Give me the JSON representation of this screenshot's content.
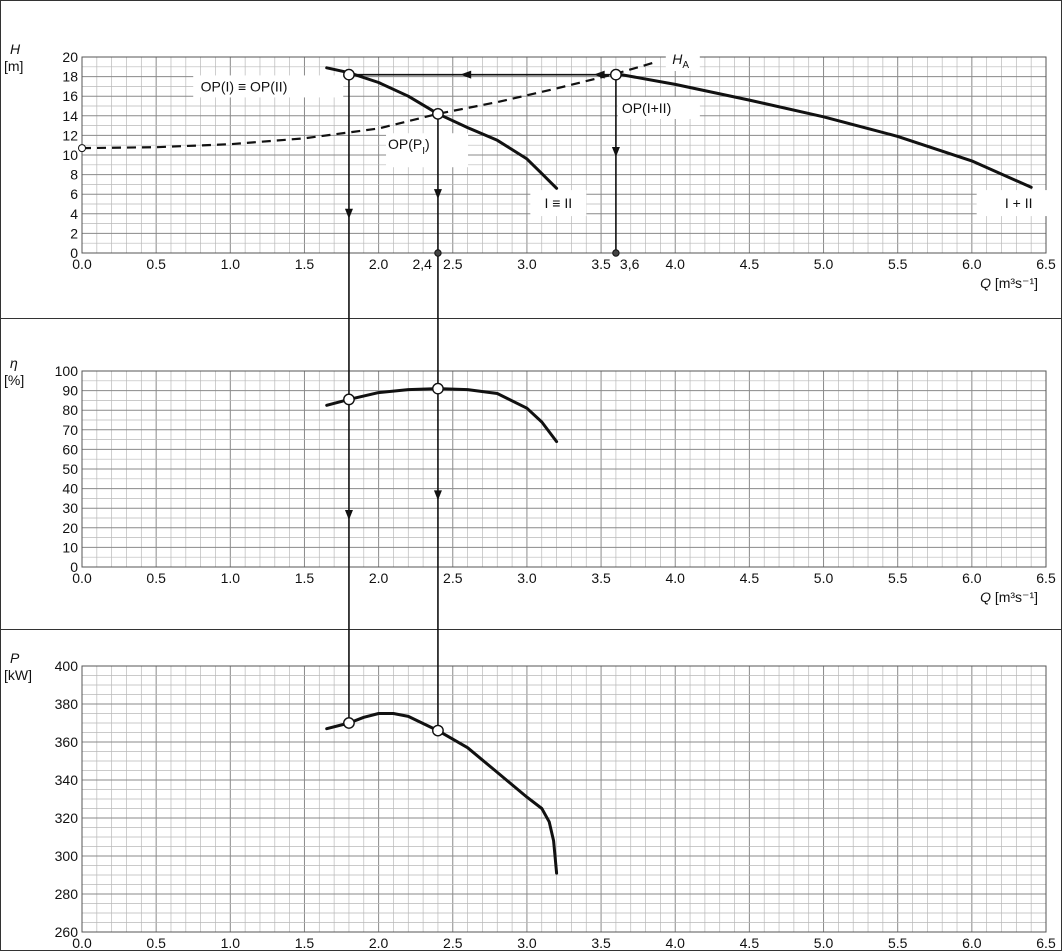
{
  "chart_data": [
    {
      "type": "line",
      "panel": "head",
      "ylabel_symbol": "H",
      "ylabel_unit": "[m]",
      "xlabel_symbol": "Q",
      "xlabel_unit": "[m³s⁻¹]",
      "xlim": [
        0,
        6.5
      ],
      "ylim": [
        0,
        20
      ],
      "x_ticks": [
        "0.0",
        "0.5",
        "1.0",
        "1.5",
        "2.0",
        "2.5",
        "3.0",
        "3.5",
        "4.0",
        "4.5",
        "5.0",
        "5.5",
        "6.0",
        "6.5"
      ],
      "y_ticks": [
        "0",
        "2",
        "4",
        "6",
        "8",
        "10",
        "12",
        "14",
        "16",
        "18",
        "20"
      ],
      "grid": true,
      "series": [
        {
          "name": "I ≡ II",
          "style": "solid",
          "x": [
            1.65,
            1.8,
            2.0,
            2.2,
            2.4,
            2.6,
            2.8,
            3.0,
            3.1,
            3.2
          ],
          "y": [
            18.9,
            18.4,
            17.4,
            16.0,
            14.2,
            12.8,
            11.5,
            9.6,
            8.1,
            6.6
          ]
        },
        {
          "name": "I + II",
          "style": "solid",
          "x": [
            3.6,
            4.0,
            4.5,
            5.0,
            5.5,
            6.0,
            6.4
          ],
          "y": [
            18.3,
            17.2,
            15.6,
            13.9,
            11.9,
            9.4,
            6.7
          ]
        },
        {
          "name": "H",
          "subscript": "A",
          "style": "dashed",
          "x": [
            0.0,
            0.5,
            1.0,
            1.5,
            2.0,
            2.4,
            2.8,
            3.2,
            3.6,
            3.85
          ],
          "y": [
            10.7,
            10.8,
            11.1,
            11.7,
            12.7,
            14.2,
            15.4,
            16.8,
            18.3,
            19.4
          ]
        }
      ],
      "points": [
        {
          "label": "OP(I) ≡ OP(II)",
          "x": 1.8,
          "y": 18.2
        },
        {
          "label": "OP(P",
          "label_sub": "I",
          "label_end": ")",
          "x": 2.4,
          "y": 14.2
        },
        {
          "label": "OP(I+II)",
          "x": 3.6,
          "y": 18.2
        }
      ],
      "annotations": [
        {
          "text": "2,4",
          "x": 2.4,
          "y": 0
        },
        {
          "text": "3,6",
          "x": 3.6,
          "y": 0
        }
      ]
    },
    {
      "type": "line",
      "panel": "efficiency",
      "ylabel_symbol": "η",
      "ylabel_unit": "[%]",
      "xlabel_symbol": "Q",
      "xlabel_unit": "[m³s⁻¹]",
      "xlim": [
        0,
        6.5
      ],
      "ylim": [
        0,
        100
      ],
      "x_ticks": [
        "0.0",
        "0.5",
        "1.0",
        "1.5",
        "2.0",
        "2.5",
        "3.0",
        "3.5",
        "4.0",
        "4.5",
        "5.0",
        "5.5",
        "6.0",
        "6.5"
      ],
      "y_ticks": [
        "0",
        "10",
        "20",
        "30",
        "40",
        "50",
        "60",
        "70",
        "80",
        "90",
        "100"
      ],
      "grid": true,
      "series": [
        {
          "name": "",
          "style": "solid",
          "x": [
            1.65,
            1.8,
            2.0,
            2.2,
            2.4,
            2.6,
            2.8,
            3.0,
            3.1,
            3.2
          ],
          "y": [
            82.5,
            85.5,
            89.0,
            90.5,
            91.0,
            90.5,
            88.5,
            81.0,
            74.0,
            64.0
          ]
        }
      ],
      "points": [
        {
          "x": 1.8,
          "y": 85.5
        },
        {
          "x": 2.4,
          "y": 91.0
        }
      ]
    },
    {
      "type": "line",
      "panel": "power",
      "ylabel_symbol": "P",
      "ylabel_unit": "[kW]",
      "xlabel_symbol": "Q",
      "xlabel_unit": "[m³s⁻¹]",
      "xlim": [
        0,
        6.5
      ],
      "ylim": [
        260,
        400
      ],
      "x_ticks": [
        "0.0",
        "0.5",
        "1.0",
        "1.5",
        "2.0",
        "2.5",
        "3.0",
        "3.5",
        "4.0",
        "4.5",
        "5.0",
        "5.5",
        "6.0",
        "6.5"
      ],
      "y_ticks": [
        "260",
        "280",
        "300",
        "320",
        "340",
        "360",
        "380",
        "400"
      ],
      "grid": true,
      "series": [
        {
          "name": "",
          "style": "solid",
          "x": [
            1.65,
            1.8,
            1.9,
            2.0,
            2.1,
            2.2,
            2.4,
            2.6,
            2.8,
            3.0,
            3.1,
            3.15,
            3.18,
            3.2
          ],
          "y": [
            367,
            370,
            373,
            375,
            375,
            373.5,
            366,
            357,
            344,
            331,
            325,
            318,
            308,
            291
          ]
        }
      ],
      "points": [
        {
          "x": 1.8,
          "y": 370
        },
        {
          "x": 2.4,
          "y": 366
        }
      ]
    }
  ]
}
